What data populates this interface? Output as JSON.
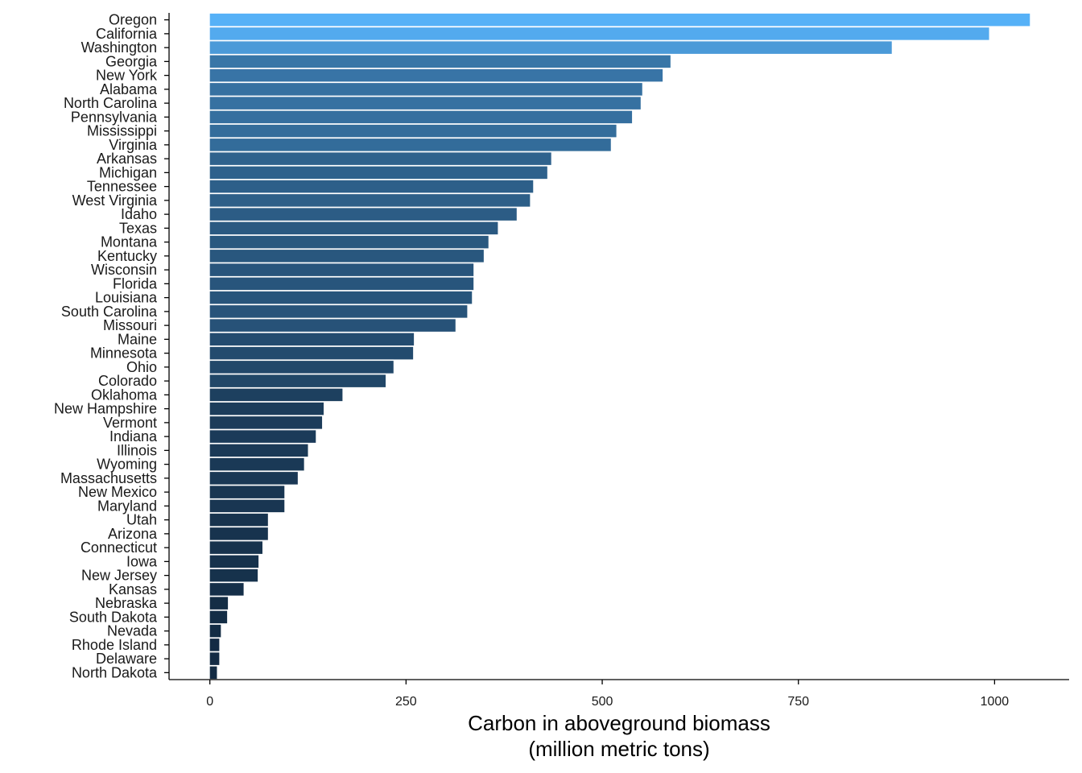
{
  "chart_data": {
    "type": "bar",
    "orientation": "horizontal",
    "title": "",
    "xlabel": "Carbon in aboveground biomass",
    "xlabel_line2": "(million metric tons)",
    "ylabel": "",
    "xlim": [
      -52,
      1095
    ],
    "xticks": [
      0,
      250,
      500,
      750,
      1000
    ],
    "grid": false,
    "legend": "none",
    "color_scale": {
      "low": "#132B43",
      "high": "#56B1F7"
    },
    "categories": [
      "Oregon",
      "California",
      "Washington",
      "Georgia",
      "New York",
      "Alabama",
      "North Carolina",
      "Pennsylvania",
      "Mississippi",
      "Virginia",
      "Arkansas",
      "Michigan",
      "Tennessee",
      "West Virginia",
      "Idaho",
      "Texas",
      "Montana",
      "Kentucky",
      "Wisconsin",
      "Florida",
      "Louisiana",
      "South Carolina",
      "Missouri",
      "Maine",
      "Minnesota",
      "Ohio",
      "Colorado",
      "Oklahoma",
      "New Hampshire",
      "Vermont",
      "Indiana",
      "Illinois",
      "Wyoming",
      "Massachusetts",
      "New Mexico",
      "Maryland",
      "Utah",
      "Arizona",
      "Connecticut",
      "Iowa",
      "New Jersey",
      "Kansas",
      "Nebraska",
      "South Dakota",
      "Nevada",
      "Rhode Island",
      "Delaware",
      "North Dakota"
    ],
    "values": [
      1045,
      993,
      869,
      587,
      577,
      551,
      549,
      538,
      518,
      511,
      435,
      430,
      412,
      408,
      391,
      367,
      355,
      349,
      336,
      336,
      334,
      328,
      313,
      260,
      259,
      234,
      224,
      169,
      145,
      143,
      135,
      125,
      120,
      112,
      95,
      95,
      74,
      74,
      67,
      62,
      61,
      43,
      23,
      22,
      14,
      12,
      12,
      9
    ]
  }
}
